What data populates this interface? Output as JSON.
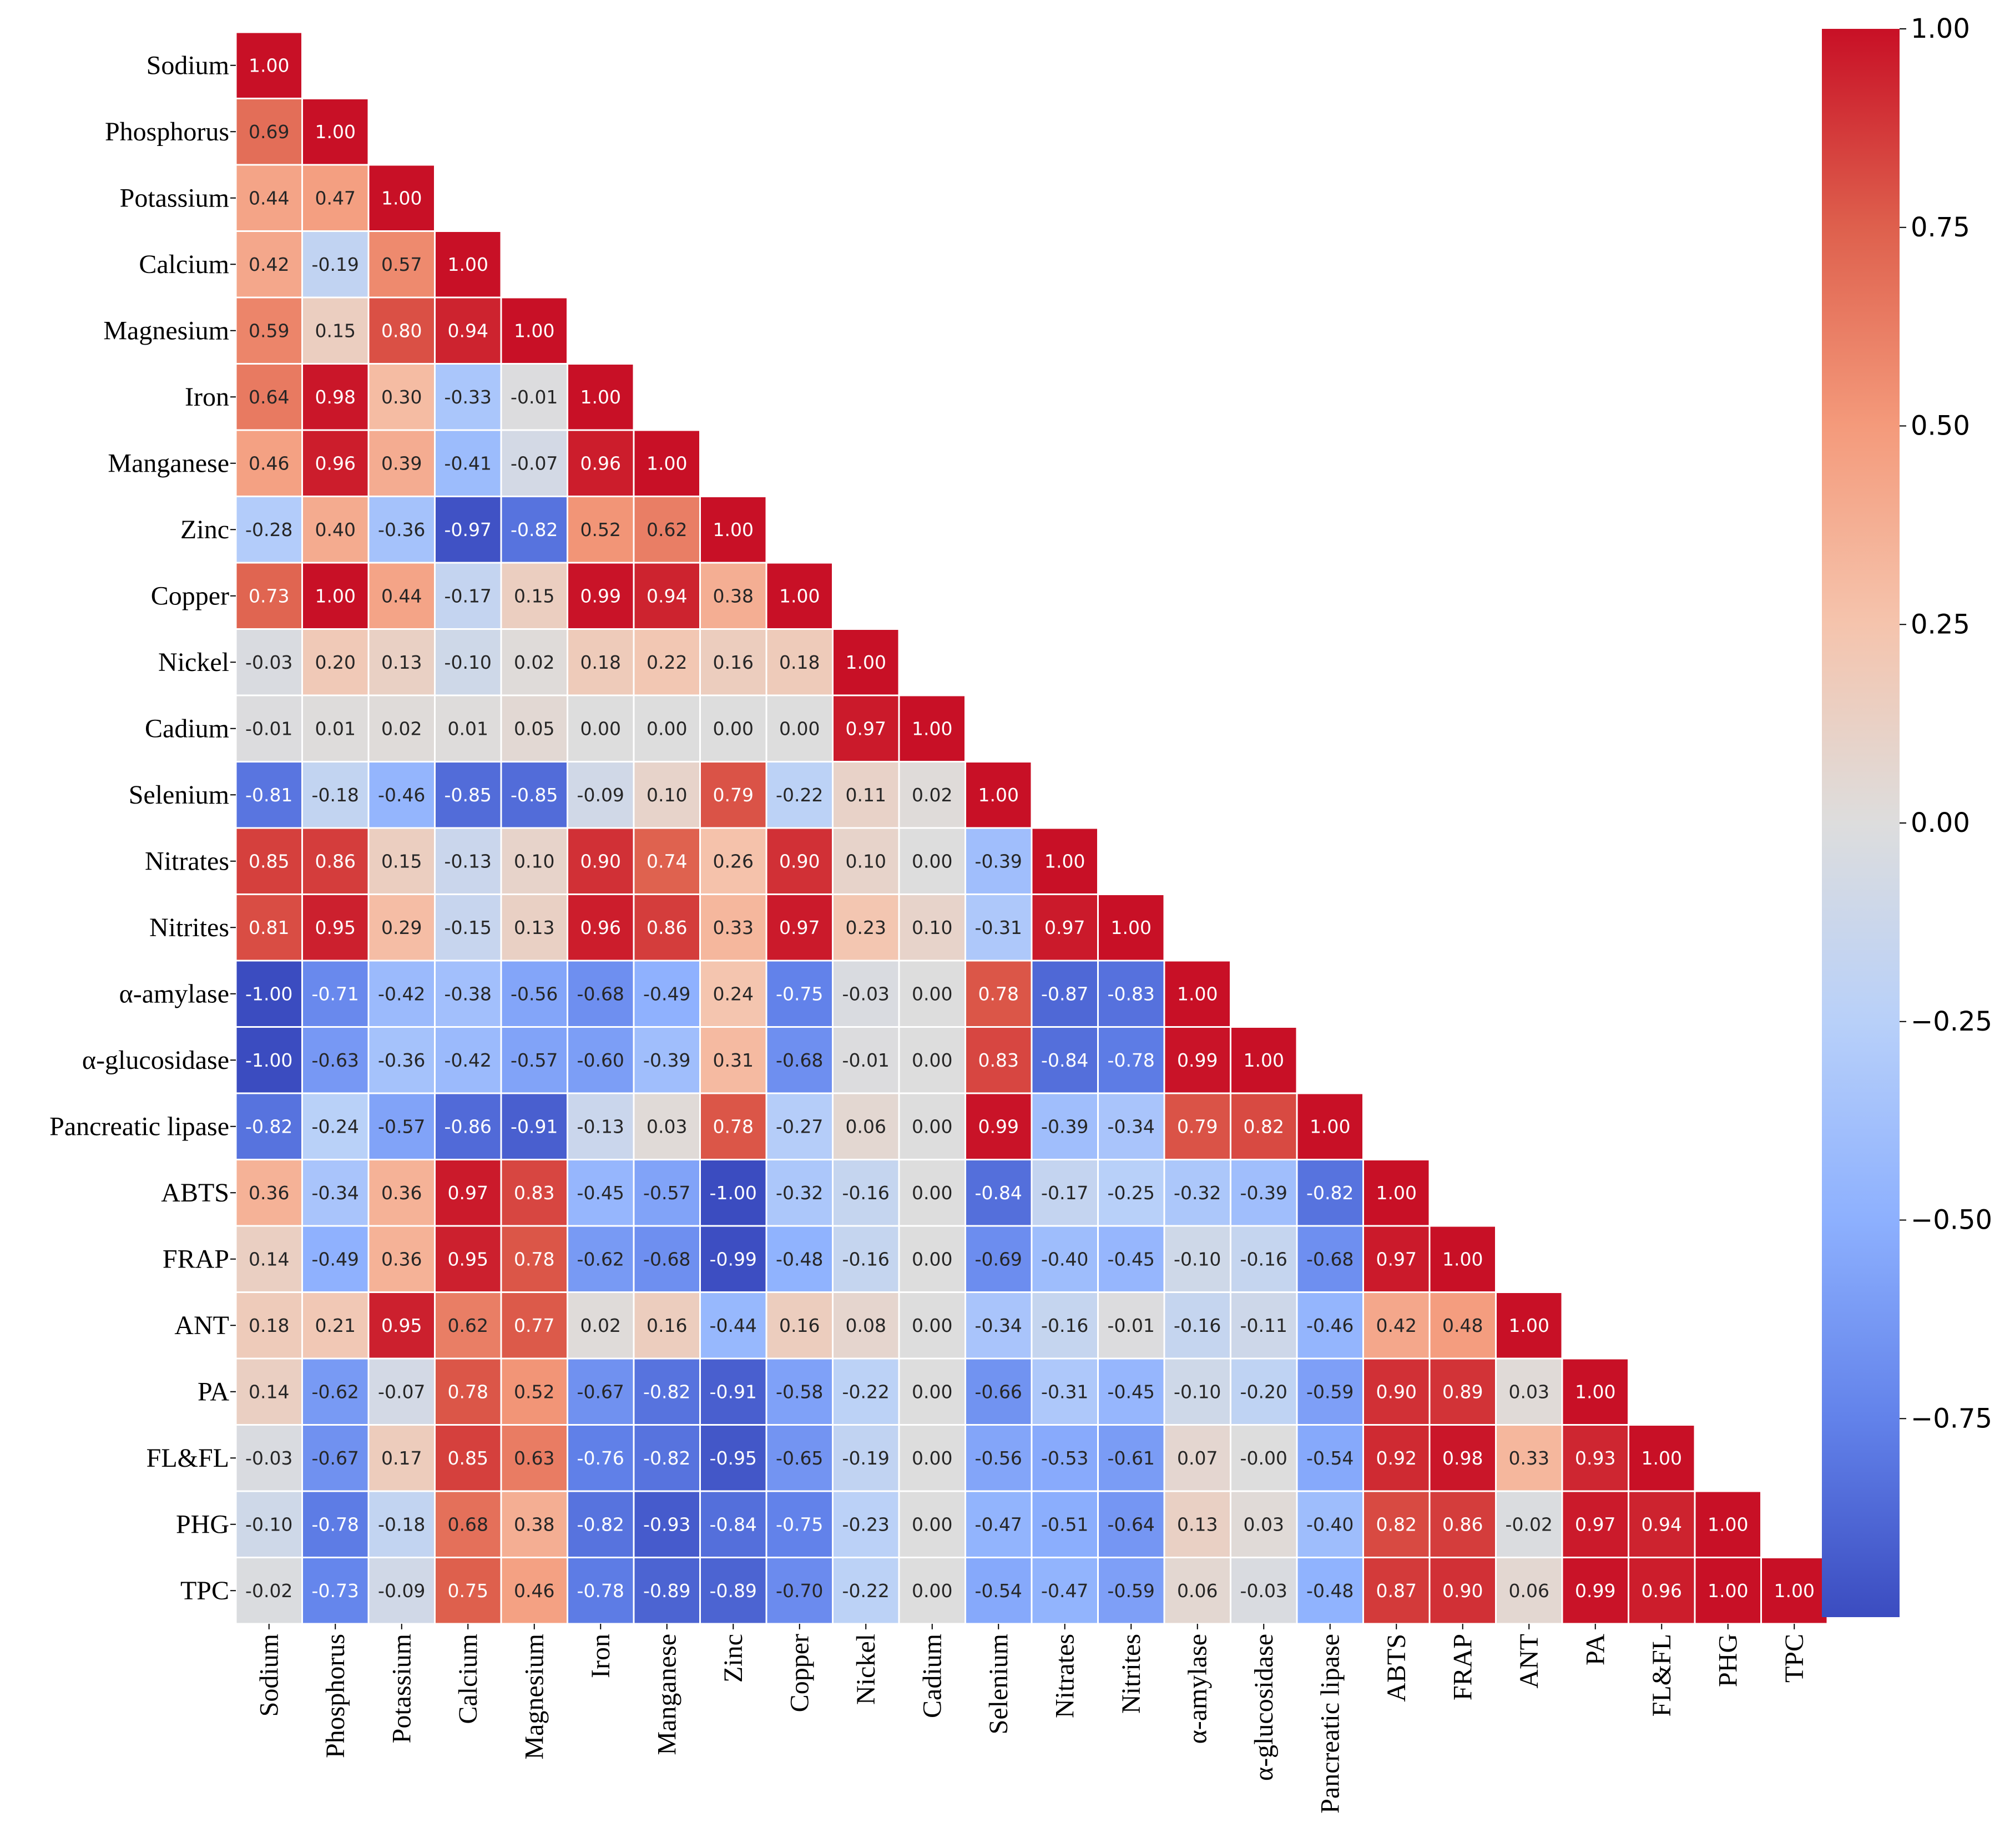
{
  "chart_data": {
    "type": "heatmap",
    "title": "",
    "variant": "lower-triangular correlation matrix",
    "colormap": "coolwarm",
    "vmin": -1.0,
    "vmax": 1.0,
    "labels": [
      "Sodium",
      "Phosphorus",
      "Potassium",
      "Calcium",
      "Magnesium",
      "Iron",
      "Manganese",
      "Zinc",
      "Copper",
      "Nickel",
      "Cadium",
      "Selenium",
      "Nitrates",
      "Nitrites",
      "α-amylase",
      "α-glucosidase",
      "Pancreatic lipase",
      "ABTS",
      "FRAP",
      "ANT",
      "PA",
      "FL&FL",
      "PHG",
      "TPC"
    ],
    "matrix": [
      [
        1.0
      ],
      [
        0.69,
        1.0
      ],
      [
        0.44,
        0.47,
        1.0
      ],
      [
        0.42,
        -0.19,
        0.57,
        1.0
      ],
      [
        0.59,
        0.15,
        0.8,
        0.94,
        1.0
      ],
      [
        0.64,
        0.98,
        0.3,
        -0.33,
        -0.01,
        1.0
      ],
      [
        0.46,
        0.96,
        0.39,
        -0.41,
        -0.07,
        0.96,
        1.0
      ],
      [
        -0.28,
        0.4,
        -0.36,
        -0.97,
        -0.82,
        0.52,
        0.62,
        1.0
      ],
      [
        0.73,
        1.0,
        0.44,
        -0.17,
        0.15,
        0.99,
        0.94,
        0.38,
        1.0
      ],
      [
        -0.03,
        0.2,
        0.13,
        -0.1,
        0.02,
        0.18,
        0.22,
        0.16,
        0.18,
        1.0
      ],
      [
        -0.01,
        0.01,
        0.02,
        0.01,
        0.05,
        0.0,
        0.0,
        0.0,
        0.0,
        0.97,
        1.0
      ],
      [
        -0.81,
        -0.18,
        -0.46,
        -0.85,
        -0.85,
        -0.09,
        0.1,
        0.79,
        -0.22,
        0.11,
        0.02,
        1.0
      ],
      [
        0.85,
        0.86,
        0.15,
        -0.13,
        0.1,
        0.9,
        0.74,
        0.26,
        0.9,
        0.1,
        0.0,
        -0.39,
        1.0
      ],
      [
        0.81,
        0.95,
        0.29,
        -0.15,
        0.13,
        0.96,
        0.86,
        0.33,
        0.97,
        0.23,
        0.1,
        -0.31,
        0.97,
        1.0
      ],
      [
        -1.0,
        -0.71,
        -0.42,
        -0.38,
        -0.56,
        -0.68,
        -0.49,
        0.24,
        -0.75,
        -0.03,
        0.0,
        0.78,
        -0.87,
        -0.83,
        1.0
      ],
      [
        -1.0,
        -0.63,
        -0.36,
        -0.42,
        -0.57,
        -0.6,
        -0.39,
        0.31,
        -0.68,
        -0.01,
        0.0,
        0.83,
        -0.84,
        -0.78,
        0.99,
        1.0
      ],
      [
        -0.82,
        -0.24,
        -0.57,
        -0.86,
        -0.91,
        -0.13,
        0.03,
        0.78,
        -0.27,
        0.06,
        0.0,
        0.99,
        -0.39,
        -0.34,
        0.79,
        0.82,
        1.0
      ],
      [
        0.36,
        -0.34,
        0.36,
        0.97,
        0.83,
        -0.45,
        -0.57,
        -1.0,
        -0.32,
        -0.16,
        0.0,
        -0.84,
        -0.17,
        -0.25,
        -0.32,
        -0.39,
        -0.82,
        1.0
      ],
      [
        0.14,
        -0.49,
        0.36,
        0.95,
        0.78,
        -0.62,
        -0.68,
        -0.99,
        -0.48,
        -0.16,
        0.0,
        -0.69,
        -0.4,
        -0.45,
        -0.1,
        -0.16,
        -0.68,
        0.97,
        1.0
      ],
      [
        0.18,
        0.21,
        0.95,
        0.62,
        0.77,
        0.02,
        0.16,
        -0.44,
        0.16,
        0.08,
        0.0,
        -0.34,
        -0.16,
        -0.01,
        -0.16,
        -0.11,
        -0.46,
        0.42,
        0.48,
        1.0
      ],
      [
        0.14,
        -0.62,
        -0.07,
        0.78,
        0.52,
        -0.67,
        -0.82,
        -0.91,
        -0.58,
        -0.22,
        0.0,
        -0.66,
        -0.31,
        -0.45,
        -0.1,
        -0.2,
        -0.59,
        0.9,
        0.89,
        0.03,
        1.0
      ],
      [
        -0.03,
        -0.67,
        0.17,
        0.85,
        0.63,
        -0.76,
        -0.82,
        -0.95,
        -0.65,
        -0.19,
        0.0,
        -0.56,
        -0.53,
        -0.61,
        0.07,
        -0.0,
        -0.54,
        0.92,
        0.98,
        0.33,
        0.93,
        1.0
      ],
      [
        -0.1,
        -0.78,
        -0.18,
        0.68,
        0.38,
        -0.82,
        -0.93,
        -0.84,
        -0.75,
        -0.23,
        0.0,
        -0.47,
        -0.51,
        -0.64,
        0.13,
        0.03,
        -0.4,
        0.82,
        0.86,
        -0.02,
        0.97,
        0.94,
        1.0
      ],
      [
        -0.02,
        -0.73,
        -0.09,
        0.75,
        0.46,
        -0.78,
        -0.89,
        -0.89,
        -0.7,
        -0.22,
        0.0,
        -0.54,
        -0.47,
        -0.59,
        0.06,
        -0.03,
        -0.48,
        0.87,
        0.9,
        0.06,
        0.99,
        0.96,
        1.0,
        1.0
      ]
    ],
    "colorbar": {
      "ticks": [
        1.0,
        0.75,
        0.5,
        0.25,
        0.0,
        -0.25,
        -0.5,
        -0.75
      ],
      "tick_labels": [
        "1.00",
        "0.75",
        "0.50",
        "0.25",
        "0.00",
        "−0.25",
        "−0.50",
        "−0.75"
      ]
    },
    "xlabel": "",
    "ylabel": ""
  }
}
